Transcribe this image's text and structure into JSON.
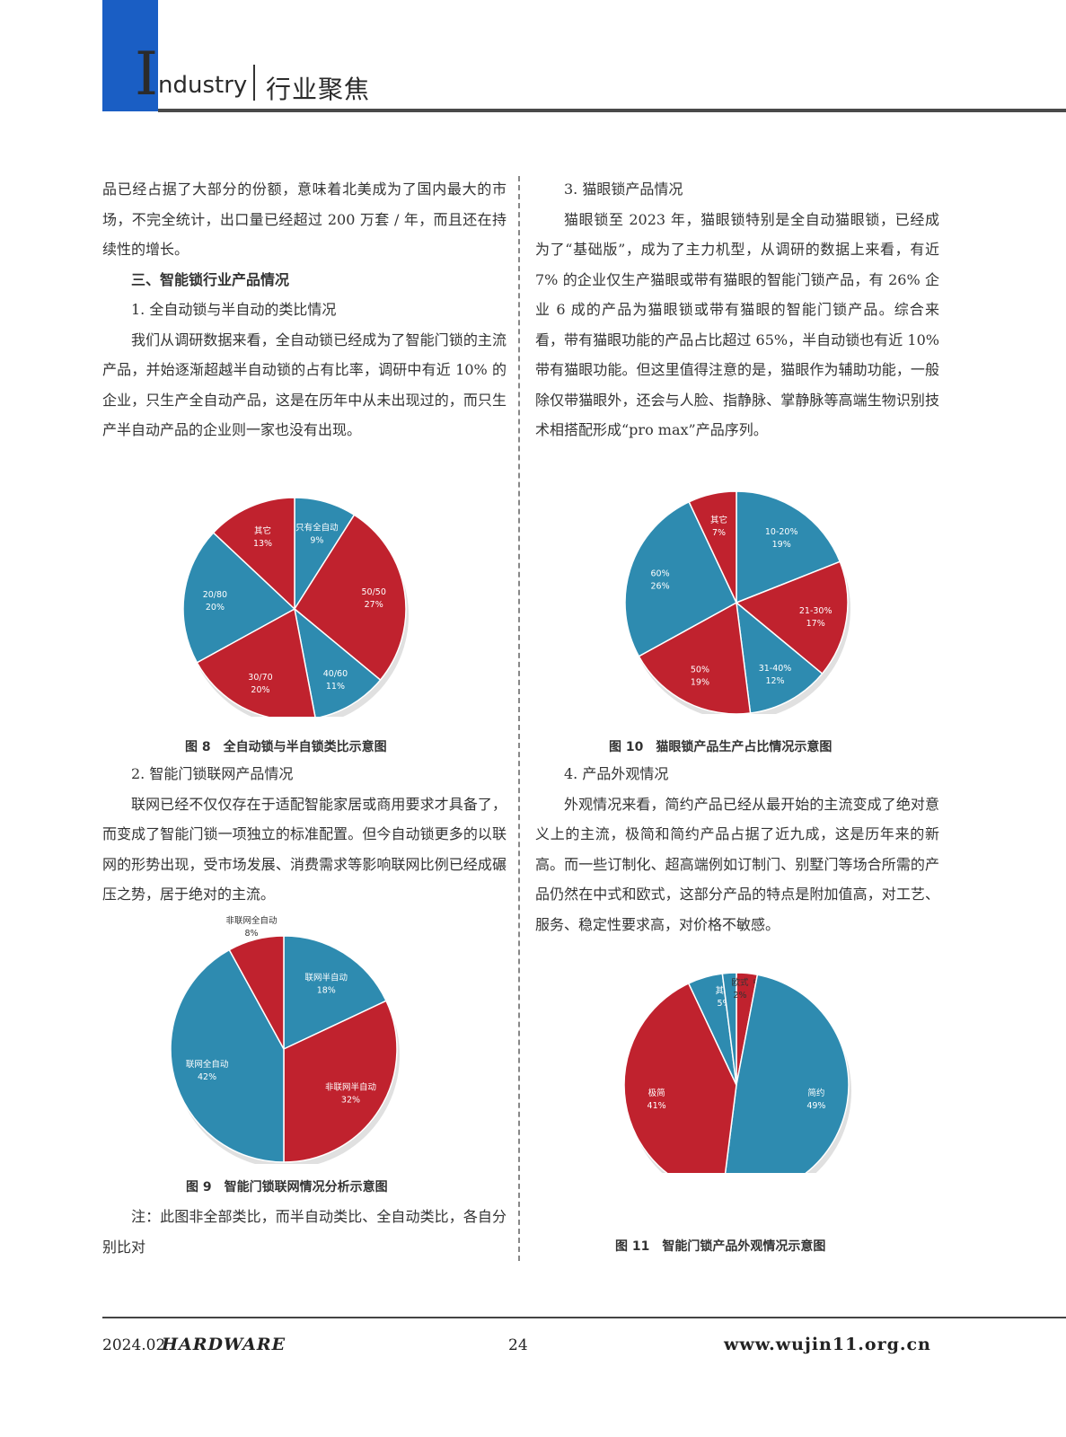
{
  "header": {
    "initial": "I",
    "title_en": "ndustry",
    "title_cn": "行业聚焦"
  },
  "left_column": [
    {
      "type": "para-cont",
      "text": "品已经占据了大部分的份额，意味着北美成为了国内最大的市场，不完全统计，出口量已经超过 200 万套 / 年，而且还在持续性的增长。"
    },
    {
      "type": "h3",
      "text": "三、智能锁行业产品情况"
    },
    {
      "type": "para",
      "text": "1. 全自动锁与半自动的类比情况"
    },
    {
      "type": "para",
      "text": "我们从调研数据来看，全自动锁已经成为了智能门锁的主流产品，并始逐渐超越半自动锁的占有比率，调研中有近 10% 的企业，只生产全自动产品，这是在历年中从未出现过的，而只生产半自动产品的企业则一家也没有出现。"
    }
  ],
  "left_column_2": [
    {
      "type": "para",
      "text": "2. 智能门锁联网产品情况"
    },
    {
      "type": "para",
      "text": "联网已经不仅仅存在于适配智能家居或商用要求才具备了，而变成了智能门锁一项独立的标准配置。但今自动锁更多的以联网的形势出现，受市场发展、消费需求等影响联网比例已经成碾压之势，居于绝对的主流。"
    }
  ],
  "left_note": "注：此图非全部类比，而半自动类比、全自动类比，各自分别比对",
  "right_column": [
    {
      "type": "para",
      "text": "3. 猫眼锁产品情况"
    },
    {
      "type": "para",
      "text": "猫眼锁至 2023 年，猫眼锁特别是全自动猫眼锁，已经成为了“基础版”，成为了主力机型，从调研的数据上来看，有近 7% 的企业仅生产猫眼或带有猫眼的智能门锁产品，有 26% 企业 6 成的产品为猫眼锁或带有猫眼的智能门锁产品。综合来看，带有猫眼功能的产品占比超过 65%，半自动锁也有近 10% 带有猫眼功能。但这里值得注意的是，猫眼作为辅助功能，一般除仅带猫眼外，还会与人脸、指静脉、掌静脉等高端生物识别技术相搭配形成“pro max”产品序列。"
    }
  ],
  "right_column_2": [
    {
      "type": "para",
      "text": "4. 产品外观情况"
    },
    {
      "type": "para",
      "text": "外观情况来看，简约产品已经从最开始的主流变成了绝对意义上的主流，极简和简约产品占据了近九成，这是历年来的新高。而一些订制化、超高端例如订制门、别墅门等场合所需的产品仍然在中式和欧式，这部分产品的特点是附加值高，对工艺、服务、稳定性要求高，对价格不敏感。"
    }
  ],
  "captions": {
    "fig8": "图 8　全自动锁与半自锁类比示意图",
    "fig9": "图 9　智能门锁联网情况分析示意图",
    "fig10": "图 10　猫眼锁产品生产占比情况示意图",
    "fig11": "图 11　智能门锁产品外观情况示意图"
  },
  "colors": {
    "teal": "#2e8bb0",
    "red": "#c0222e",
    "blue_block": "#1a5ec4"
  },
  "chart_data": [
    {
      "id": "fig8",
      "type": "pie",
      "slices": [
        {
          "label": "只有全自动",
          "value": 9,
          "pct": "9%",
          "color": "teal"
        },
        {
          "label": "50/50",
          "value": 27,
          "pct": "27%",
          "color": "red"
        },
        {
          "label": "40/60",
          "value": 11,
          "pct": "11%",
          "color": "teal"
        },
        {
          "label": "30/70",
          "value": 20,
          "pct": "20%",
          "color": "red"
        },
        {
          "label": "20/80",
          "value": 20,
          "pct": "20%",
          "color": "teal"
        },
        {
          "label": "其它",
          "value": 13,
          "pct": "13%",
          "color": "red"
        }
      ]
    },
    {
      "id": "fig9",
      "type": "pie",
      "slices": [
        {
          "label": "联网半自动",
          "value": 18,
          "pct": "18%",
          "color": "teal"
        },
        {
          "label": "非联网半自动",
          "value": 32,
          "pct": "32%",
          "color": "red"
        },
        {
          "label": "联网全自动",
          "value": 42,
          "pct": "42%",
          "color": "teal"
        },
        {
          "label": "非联网全自动",
          "value": 8,
          "pct": "8%",
          "color": "red"
        }
      ]
    },
    {
      "id": "fig10",
      "type": "pie",
      "slices": [
        {
          "label": "10-20%",
          "value": 19,
          "pct": "19%",
          "color": "teal"
        },
        {
          "label": "21-30%",
          "value": 17,
          "pct": "17%",
          "color": "red"
        },
        {
          "label": "31-40%",
          "value": 12,
          "pct": "12%",
          "color": "teal"
        },
        {
          "label": "50%",
          "value": 19,
          "pct": "19%",
          "color": "red"
        },
        {
          "label": "60%",
          "value": 26,
          "pct": "26%",
          "color": "teal"
        },
        {
          "label": "其它",
          "value": 7,
          "pct": "7%",
          "color": "red"
        }
      ]
    },
    {
      "id": "fig11",
      "type": "pie",
      "slices": [
        {
          "label": "中式",
          "value": 3,
          "pct": "3%",
          "color": "red"
        },
        {
          "label": "简约",
          "value": 49,
          "pct": "49%",
          "color": "teal"
        },
        {
          "label": "极简",
          "value": 41,
          "pct": "41%",
          "color": "red"
        },
        {
          "label": "其它",
          "value": 5,
          "pct": "5%",
          "color": "teal"
        },
        {
          "label": "欧式",
          "value": 2,
          "pct": "2%",
          "color": "teal"
        }
      ]
    }
  ],
  "footer": {
    "date": "2024.02",
    "brand": "HARDWARE",
    "page": "24",
    "url": "www.wujin11.org.cn"
  }
}
